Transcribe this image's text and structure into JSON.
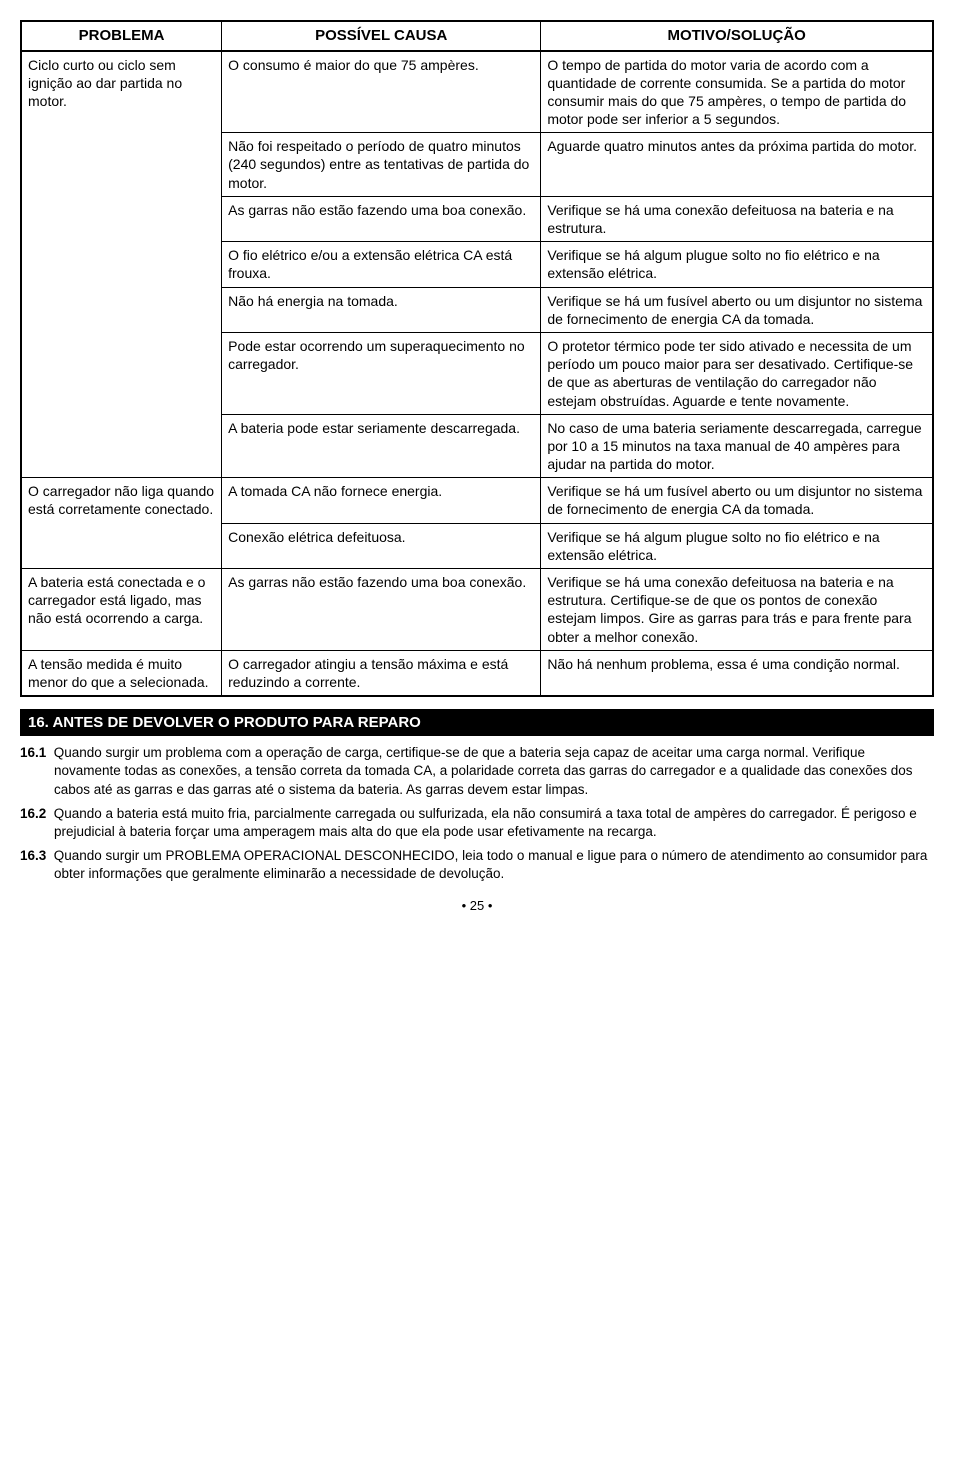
{
  "table": {
    "headers": [
      "PROBLEMA",
      "POSSÍVEL CAUSA",
      "MOTIVO/SOLUÇÃO"
    ],
    "rows": [
      {
        "problema": "Ciclo curto ou ciclo sem ignição ao dar partida no motor.",
        "pairs": [
          {
            "causa": "O consumo é maior do que 75 ampères.",
            "motivo": "O tempo de partida do motor varia de acordo com a quantidade de corrente consumida. Se a partida do motor consumir mais do que 75 ampères, o tempo de partida do motor pode ser inferior a 5 segundos."
          },
          {
            "causa": "Não foi respeitado o período de quatro minutos (240 segundos) entre as tentativas de partida do motor.",
            "motivo": "Aguarde quatro minutos antes da próxima partida do motor."
          },
          {
            "causa": "As garras não estão fazendo uma boa conexão.",
            "motivo": "Verifique se há uma conexão defeituosa na bateria e na estrutura."
          },
          {
            "causa": "O fio elétrico e/ou a extensão elétrica CA está frouxa.",
            "motivo": "Verifique se há algum plugue solto no fio elétrico e na extensão elétrica."
          },
          {
            "causa": "Não há energia na tomada.",
            "motivo": "Verifique se há um fusível aberto ou um disjuntor no sistema de fornecimento de energia CA da tomada."
          },
          {
            "causa": "Pode estar ocorrendo um superaquecimento no carregador.",
            "motivo": "O protetor térmico pode ter sido ativado e necessita de um período um pouco maior para ser desativado. Certifique-se de que as aberturas de ventilação do carregador não estejam obstruídas. Aguarde e tente novamente."
          },
          {
            "causa": "A bateria pode estar seriamente descarregada.",
            "motivo": "No caso de uma bateria seriamente descarregada, carregue por 10 a 15 minutos na taxa manual de 40 ampères para ajudar na partida do motor."
          }
        ]
      },
      {
        "problema": "O carregador não liga quando está corretamente conectado.",
        "pairs": [
          {
            "causa": "A tomada CA não fornece energia.",
            "motivo": "Verifique se há um fusível aberto ou um disjuntor no sistema de fornecimento de energia CA da tomada."
          },
          {
            "causa": "Conexão elétrica defeituosa.",
            "motivo": "Verifique se há algum plugue solto no fio elétrico e na extensão elétrica."
          }
        ]
      },
      {
        "problema": "A bateria está conectada e o carregador está ligado, mas não está ocorrendo a carga.",
        "pairs": [
          {
            "causa": "As garras não estão fazendo uma boa conexão.",
            "motivo": "Verifique se há uma conexão defeituosa na bateria e na estrutura. Certifique-se de que os pontos de conexão estejam limpos. Gire as garras para trás e para frente para obter a melhor conexão."
          }
        ]
      },
      {
        "problema": "A tensão medida é muito menor do que a selecionada.",
        "pairs": [
          {
            "causa": "O carregador atingiu a tensão máxima e está reduzindo a corrente.",
            "motivo": "Não há nenhum problema, essa é uma condição normal."
          }
        ]
      }
    ]
  },
  "section": {
    "title": "16.  ANTES DE DEVOLVER O PRODUTO PARA REPARO",
    "items": [
      {
        "num": "16.1",
        "text": "Quando surgir um problema com a operação de carga, certifique-se de que a bateria seja capaz de aceitar uma carga normal. Verifique novamente todas as conexões, a tensão correta da tomada CA, a polaridade correta das garras do carregador e a qualidade das conexões dos cabos até as garras e das garras até o sistema da bateria. As garras devem estar limpas."
      },
      {
        "num": "16.2",
        "text": "Quando a bateria está muito fria, parcialmente carregada ou sulfurizada, ela não consumirá a taxa total de ampères do carregador. É perigoso e prejudicial à bateria forçar uma amperagem mais alta do que ela pode usar efetivamente na recarga."
      },
      {
        "num": "16.3",
        "text": "Quando surgir um PROBLEMA OPERACIONAL DESCONHECIDO, leia todo o manual e ligue para o número de atendimento ao consumidor para obter informações que geralmente eliminarão a necessidade de devolução."
      }
    ]
  },
  "pageNumber": "• 25 •"
}
